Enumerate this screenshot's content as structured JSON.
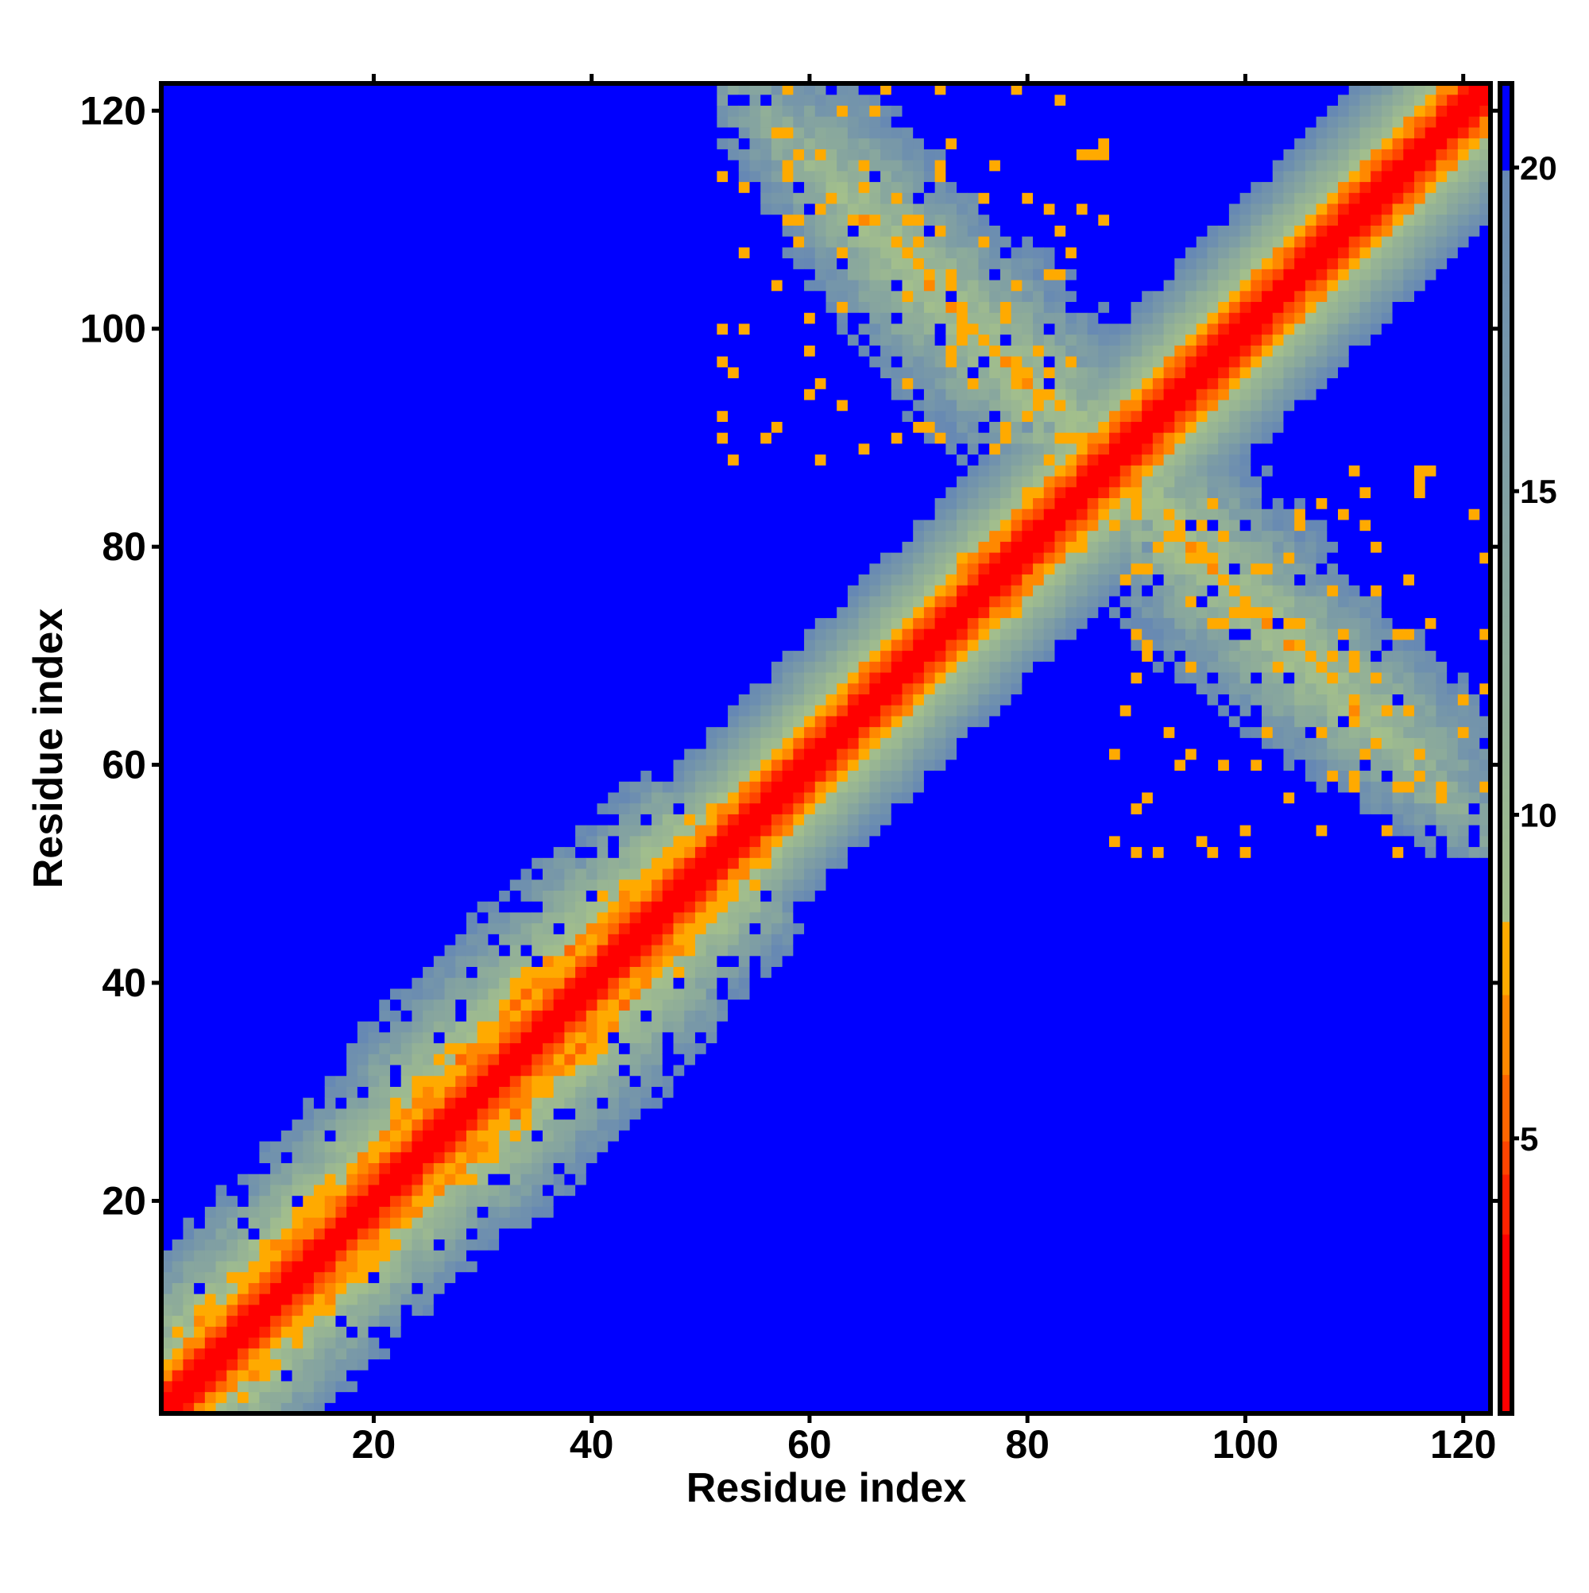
{
  "chart_data": {
    "type": "heatmap",
    "title": "",
    "xlabel": "Residue index",
    "ylabel": "Residue index",
    "n_residues": 122,
    "xlim": [
      0.5,
      122.5
    ],
    "ylim": [
      0.5,
      122.5
    ],
    "x_ticks": [
      20,
      40,
      60,
      80,
      100,
      120
    ],
    "y_ticks": [
      20,
      40,
      60,
      80,
      100,
      120
    ],
    "x_tick_labels": [
      "20",
      "40",
      "60",
      "80",
      "100",
      "120"
    ],
    "y_tick_labels": [
      "20",
      "40",
      "60",
      "80",
      "100",
      "120"
    ],
    "colorbar": {
      "range": [
        0.75,
        21.3
      ],
      "ticks": [
        5,
        10,
        15,
        20
      ],
      "tick_labels": [
        "5",
        "10",
        "15",
        "20"
      ],
      "stops": [
        {
          "max": 3.5,
          "color": "#ff0000"
        },
        {
          "max": 4.5,
          "color": "#ff2200"
        },
        {
          "max": 5.0,
          "color": "#ff4400"
        },
        {
          "max": 6.0,
          "color": "#ff6600"
        },
        {
          "max": 7.2,
          "color": "#ff8800"
        },
        {
          "max": 8.4,
          "color": "#ffaa00"
        },
        {
          "max": 20.0,
          "color_from": "#a3bf8c",
          "color_to": "#6688b4"
        },
        {
          "max": 999,
          "color": "#0000ff"
        }
      ]
    },
    "distance_model": {
      "diagonal": {
        "base": 1.2,
        "per_residue_offset": 1.55
      },
      "broad_region": {
        "residue_range": [
          5,
          52
        ],
        "spread_factor": 0.82
      },
      "antiparallel_hairpin": {
        "turn_residue": 87.5,
        "arm_start_residue": 52,
        "base": 8.2,
        "per_offset": 0.95
      }
    }
  }
}
